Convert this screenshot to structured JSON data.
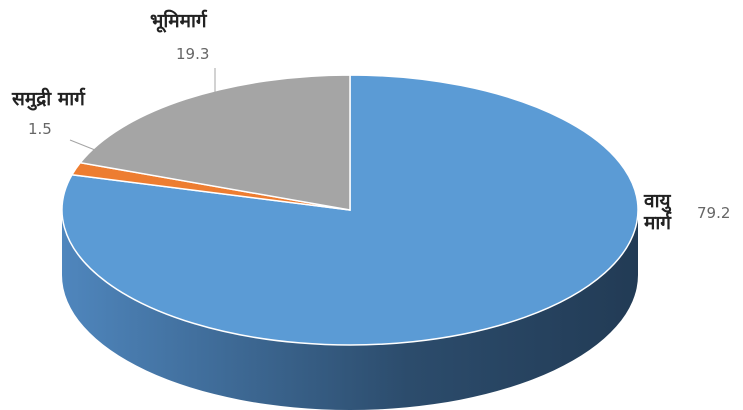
{
  "chart_data": {
    "type": "pie",
    "categories": [
      "वायु मार्ग",
      "समुद्री मार्ग",
      "भूमिमार्ग"
    ],
    "values": [
      79.2,
      1.5,
      19.3
    ],
    "colors": [
      "#5b9bd5",
      "#ed7d31",
      "#a5a5a5"
    ]
  }
}
